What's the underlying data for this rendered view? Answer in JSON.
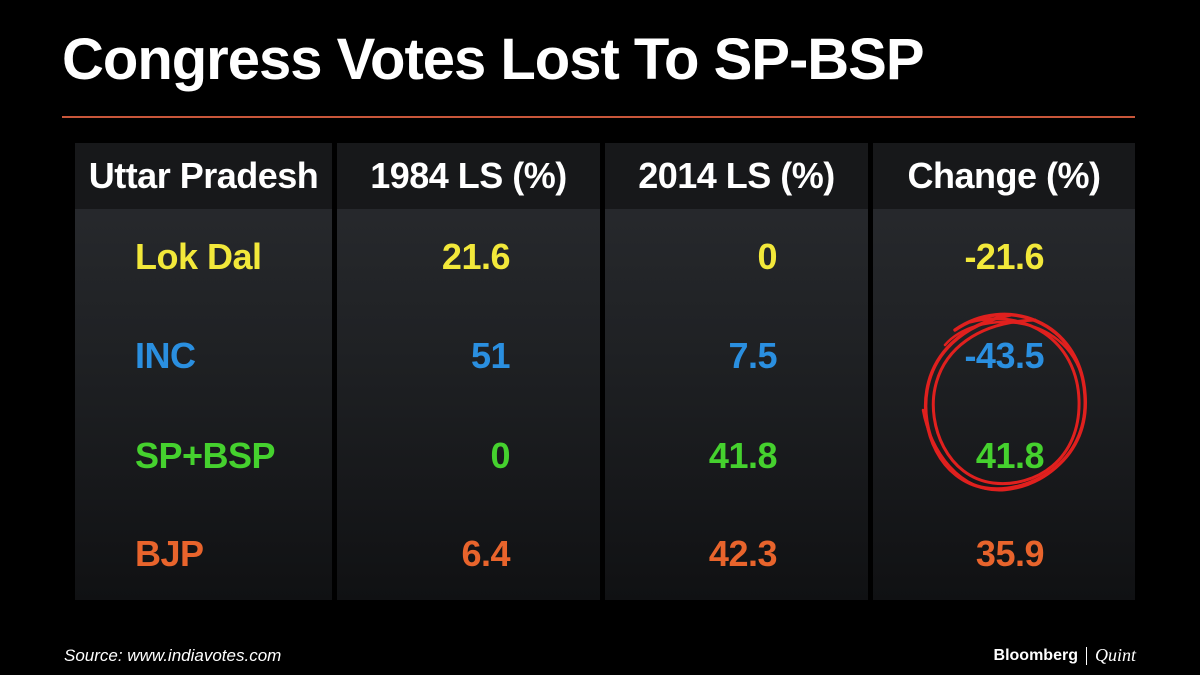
{
  "title": "Congress Votes Lost To SP-BSP",
  "source": "Source: www.indiavotes.com",
  "brand": {
    "left": "Bloomberg",
    "right": "Quint"
  },
  "colors": {
    "accent_rule": "#c8563a",
    "highlight_circle": "#e0201e"
  },
  "chart_data": {
    "type": "table",
    "title": "Congress Votes Lost To SP-BSP",
    "columns": [
      "Uttar Pradesh",
      "1984 LS (%)",
      "2014 LS (%)",
      "Change (%)"
    ],
    "rows": [
      {
        "party": "Lok Dal",
        "y1984": "21.6",
        "y2014": "0",
        "change": "-21.6",
        "color": "#f2e83a"
      },
      {
        "party": "INC",
        "y1984": "51",
        "y2014": "7.5",
        "change": "-43.5",
        "color": "#2a8fe0"
      },
      {
        "party": "SP+BSP",
        "y1984": "0",
        "y2014": "41.8",
        "change": "41.8",
        "color": "#45d12e"
      },
      {
        "party": "BJP",
        "y1984": "6.4",
        "y2014": "42.3",
        "change": "35.9",
        "color": "#e8642c"
      }
    ],
    "highlighted_cells": [
      "-43.5",
      "41.8"
    ]
  }
}
